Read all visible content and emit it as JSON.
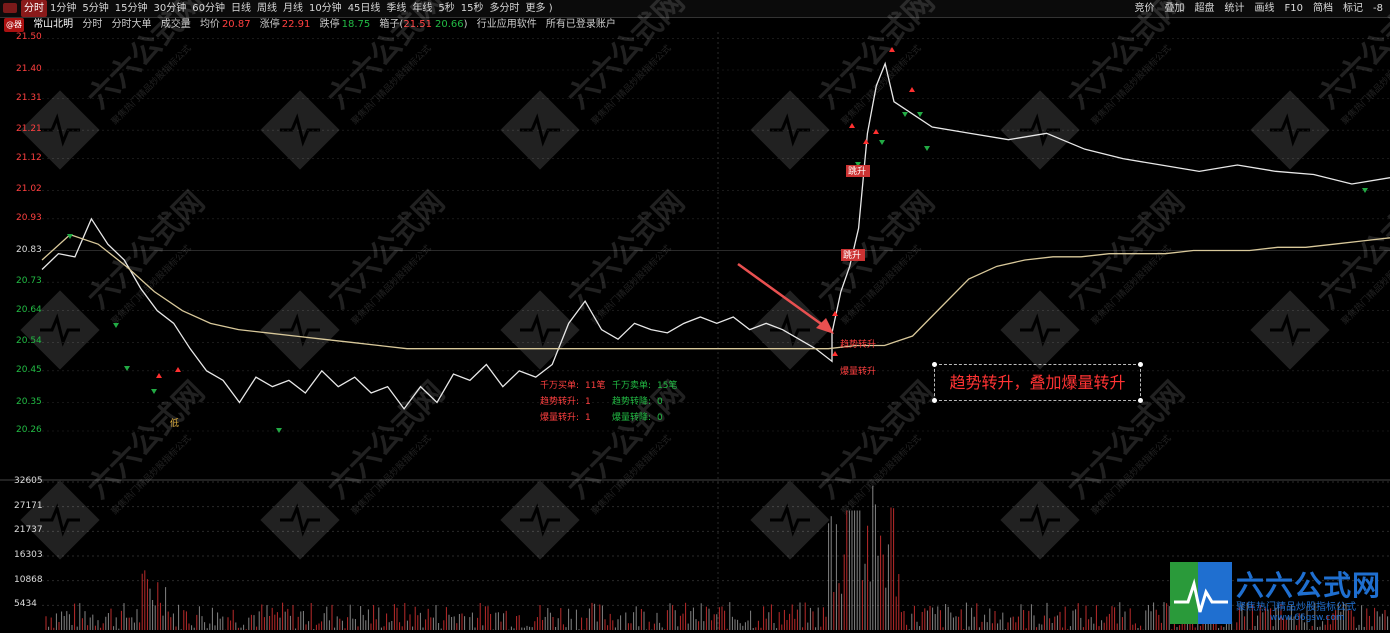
{
  "toolbar": {
    "periods": [
      "分时",
      "1分钟",
      "5分钟",
      "15分钟",
      "30分钟",
      "60分钟",
      "日线",
      "周线",
      "月线",
      "10分钟",
      "45日线",
      "季线",
      "年线",
      "5秒",
      "15秒",
      "多分时",
      "更多 )"
    ],
    "active_index": 0,
    "right_items": [
      "竞价",
      "叠加",
      "超盘",
      "统计",
      "画线",
      "F10",
      "简档",
      "标记",
      "-8"
    ]
  },
  "info": {
    "badge": "@器",
    "stock_name": "常山北明",
    "items": [
      "分时",
      "分时大单",
      "成交量",
      "均价"
    ],
    "avg_price": "20.87",
    "limit_up_label": "涨停",
    "limit_up": "22.91",
    "limit_down_label": "跌停",
    "limit_down": "18.75",
    "box_label": "箱子(",
    "box_low": "21.51",
    "box_high": "20.66",
    "box_tail": ")",
    "industry": "行业应用软件",
    "account": "所有已登录账户"
  },
  "price_axis": [
    "21.50",
    "21.40",
    "21.31",
    "21.21",
    "21.12",
    "21.02",
    "20.93",
    "20.83",
    "20.73",
    "20.64",
    "20.54",
    "20.45",
    "20.35",
    "20.26"
  ],
  "volume_axis": [
    "32605",
    "27171",
    "21737",
    "16303",
    "10868",
    "5434"
  ],
  "price_range": [
    20.2,
    21.52
  ],
  "volume_max": 32605,
  "stats": {
    "big_buy_label": "千万买单:",
    "big_buy_value": "11笔",
    "big_sell_label": "千万卖单:",
    "big_sell_value": "15笔",
    "trend_up_label": "趋势转升:",
    "trend_up_value": "1",
    "trend_down_label": "趋势转降:",
    "trend_down_value": "0",
    "burst_up_label": "爆量转升:",
    "burst_up_value": "1",
    "burst_down_label": "爆量转降:",
    "burst_down_value": "0"
  },
  "chart_labels": {
    "jump_label": "跳升",
    "jump2_label": "跳升",
    "trend_label": "趋势转升",
    "burst_label": "爆量转升",
    "low_label": "低"
  },
  "callout_text": "趋势转升，叠加爆量转升",
  "brand": {
    "title": "六六公式网",
    "subtitle": "聚焦热门精品炒股指标公式",
    "url": "www.66gsw.com"
  },
  "watermark": {
    "text": "六六公式网",
    "subtext": "聚焦热门精品炒股指标公式"
  },
  "colors": {
    "price_line": "#e8e8e8",
    "avg_line": "#d8c89a",
    "up": "#ff3030",
    "down": "#22aa44",
    "axis_text_up": "#ff4040",
    "axis_text_down": "#22bb44",
    "grid": "#2a2a2a"
  },
  "chart_data": {
    "type": "line",
    "title": "",
    "xlabel": "",
    "ylabel": "",
    "ylim": [
      20.26,
      21.5
    ],
    "series": [
      {
        "values": [
          20.77,
          20.82,
          20.81,
          20.93,
          20.85,
          20.8,
          20.71,
          20.64,
          20.6,
          20.52,
          20.45,
          20.42,
          20.35,
          20.43,
          20.4,
          20.42,
          20.38,
          20.45,
          20.4,
          20.43,
          20.38,
          20.4,
          20.33,
          20.4,
          20.35,
          20.44,
          20.42,
          20.47,
          20.4,
          20.45,
          20.43,
          20.47,
          20.6,
          20.67,
          20.58,
          20.55,
          20.6,
          20.58,
          20.57,
          20.6,
          20.62,
          20.6,
          20.62,
          20.58,
          20.6,
          20.58,
          20.55,
          20.52,
          20.48,
          20.57,
          20.7,
          20.78,
          20.9,
          21.2,
          21.35,
          21.42,
          21.3,
          21.22,
          21.2,
          21.18,
          21.2,
          21.15,
          21.12,
          21.1,
          21.08,
          21.1,
          21.08,
          21.07,
          21.04,
          21.06
        ]
      },
      {
        "values": [
          20.8,
          20.88,
          20.85,
          20.78,
          20.7,
          20.64,
          20.6,
          20.58,
          20.57,
          20.56,
          20.55,
          20.54,
          20.53,
          20.52,
          20.52,
          20.52,
          20.52,
          20.52,
          20.52,
          20.52,
          20.52,
          20.52,
          20.52,
          20.52,
          20.52,
          20.52,
          20.52,
          20.52,
          20.52,
          20.53,
          20.53,
          20.56,
          20.65,
          20.74,
          20.78,
          20.8,
          20.81,
          20.81,
          20.82,
          20.82,
          20.82,
          20.83,
          20.83,
          20.83,
          20.84,
          20.84,
          20.85,
          20.86,
          20.87
        ]
      }
    ]
  }
}
